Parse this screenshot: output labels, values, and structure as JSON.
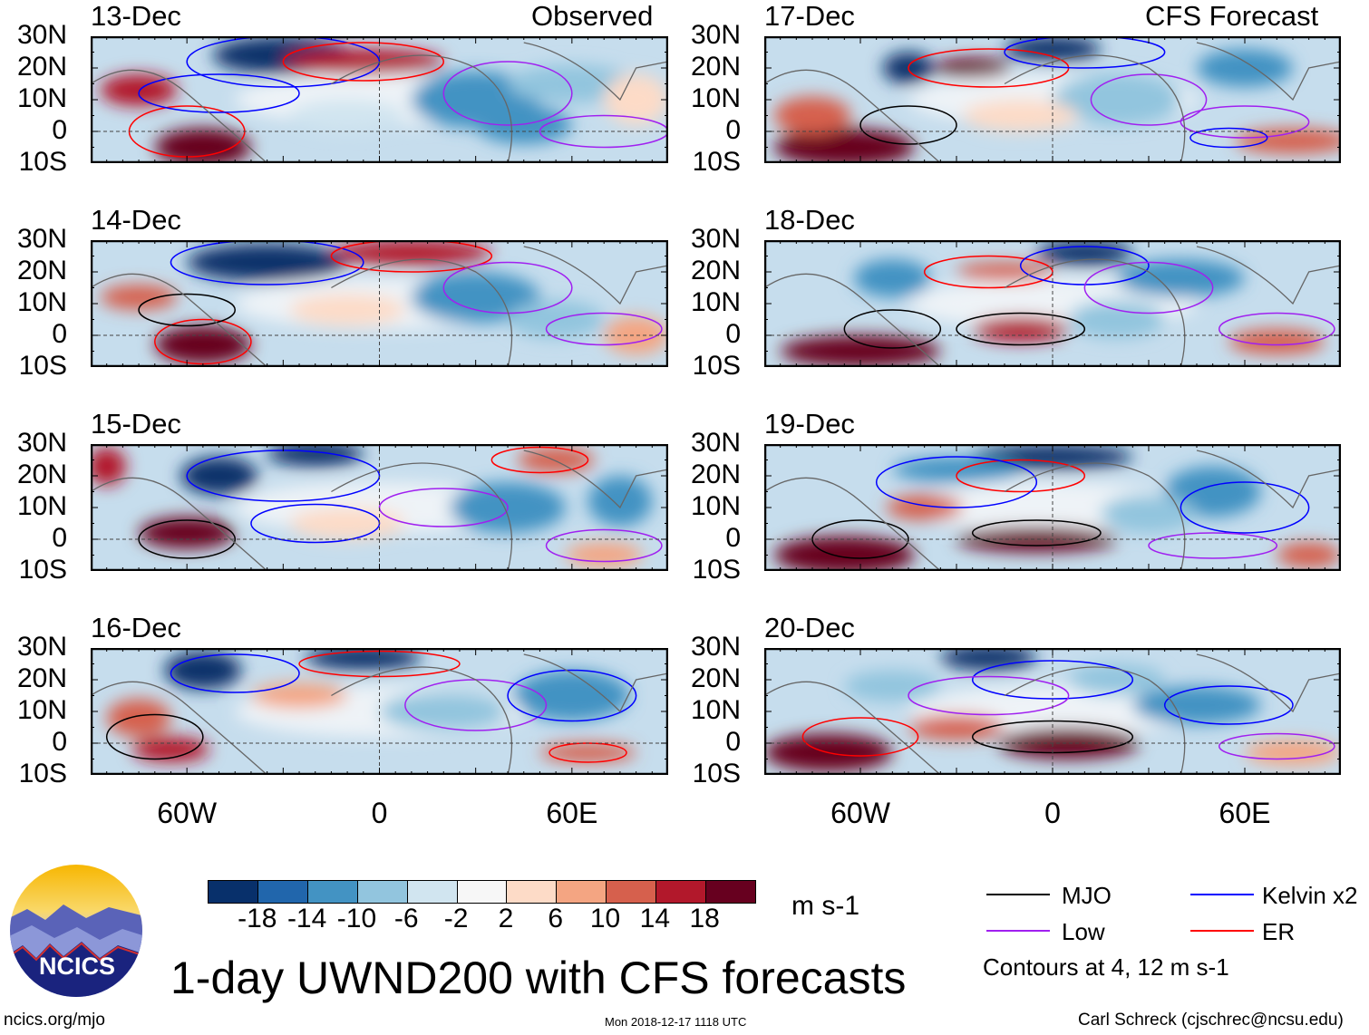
{
  "chart_data": {
    "type": "heatmap",
    "title": "1-day UWND200 with CFS forecasts",
    "variable": "UWND200",
    "units": "m s-1",
    "lat_ticks": [
      "30N",
      "20N",
      "10N",
      "0",
      "10S"
    ],
    "lon_ticks": [
      "60W",
      "0",
      "60E"
    ],
    "lon_range": [
      -90,
      90
    ],
    "lat_range": [
      -10,
      30
    ],
    "column_headers": {
      "left": "Observed",
      "right": "CFS Forecast"
    },
    "panels": [
      {
        "date": "13-Dec",
        "source": "Observed"
      },
      {
        "date": "14-Dec",
        "source": "Observed"
      },
      {
        "date": "15-Dec",
        "source": "Observed"
      },
      {
        "date": "16-Dec",
        "source": "Observed"
      },
      {
        "date": "17-Dec",
        "source": "CFS Forecast"
      },
      {
        "date": "18-Dec",
        "source": "CFS Forecast"
      },
      {
        "date": "19-Dec",
        "source": "CFS Forecast"
      },
      {
        "date": "20-Dec",
        "source": "CFS Forecast"
      }
    ],
    "colorbar": {
      "levels": [
        "-18",
        "-14",
        "-10",
        "-6",
        "-2",
        "2",
        "6",
        "10",
        "14",
        "18"
      ],
      "colors": [
        "#08306b",
        "#2166ac",
        "#4393c3",
        "#92c5de",
        "#d1e5f0",
        "#f7f7f7",
        "#fddbc7",
        "#f4a582",
        "#d6604d",
        "#b2182b",
        "#67001f"
      ]
    },
    "legend": {
      "items": [
        {
          "label": "MJO",
          "color": "#000000"
        },
        {
          "label": "Kelvin x2",
          "color": "#0000ff"
        },
        {
          "label": "Low",
          "color": "#a020f0"
        },
        {
          "label": "ER",
          "color": "#ff0000"
        }
      ],
      "note": "Contours at 4, 12 m s-1"
    }
  },
  "logo": {
    "text": "NCICS"
  },
  "footer": {
    "url": "ncics.org/mjo",
    "timestamp": "Mon 2018-12-17 1118 UTC",
    "author": "Carl Schreck (cjschrec@ncsu.edu)"
  }
}
